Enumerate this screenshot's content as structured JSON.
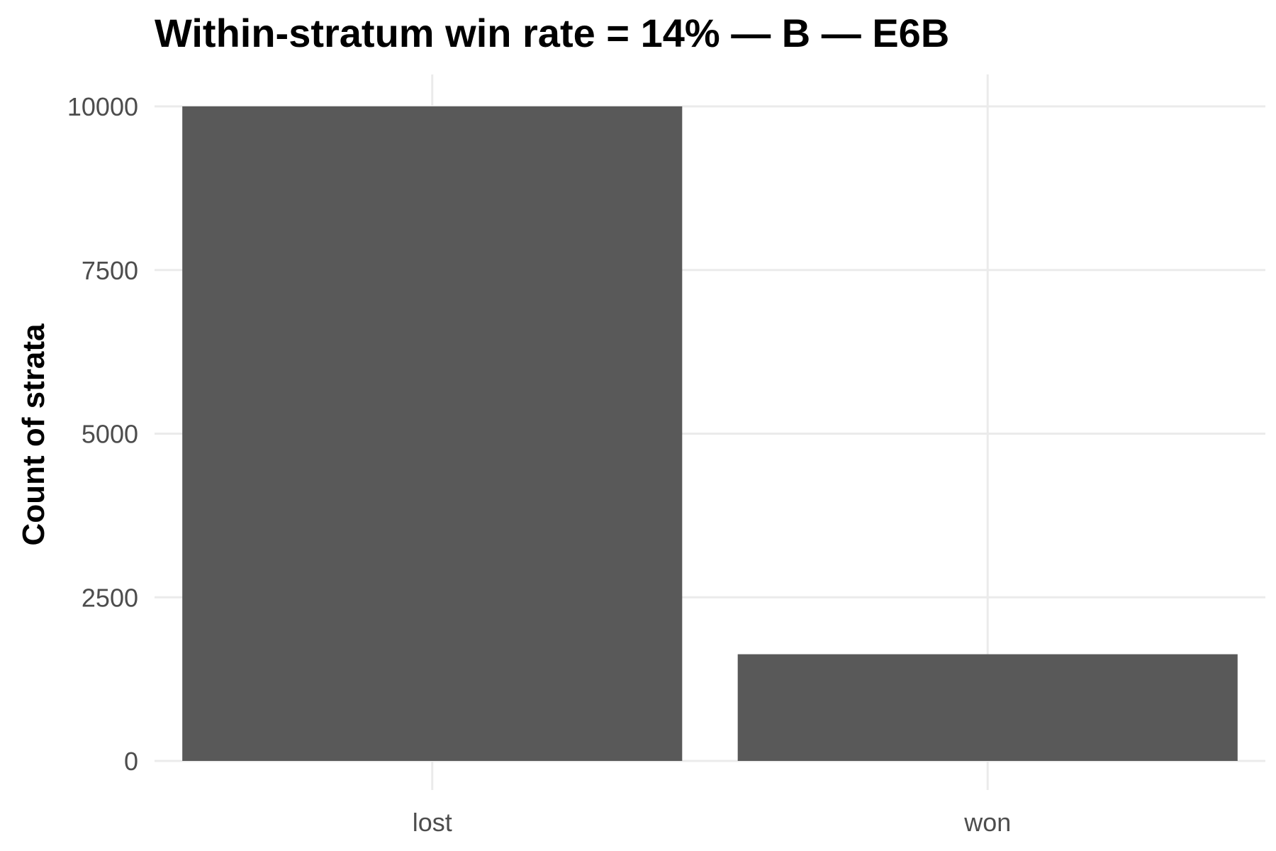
{
  "chart_data": {
    "type": "bar",
    "title": "Within-stratum win rate = 14% — B — E6B",
    "xlabel": "",
    "ylabel": "Count of strata",
    "categories": [
      "lost",
      "won"
    ],
    "values": [
      10000,
      1630
    ],
    "ylim": [
      0,
      10500
    ],
    "yticks": [
      0,
      2500,
      5000,
      7500,
      10000
    ],
    "ytick_labels": [
      "0",
      "2500",
      "5000",
      "7500",
      "10000"
    ],
    "bar_color": "#595959",
    "grid": true,
    "legend": "none"
  }
}
